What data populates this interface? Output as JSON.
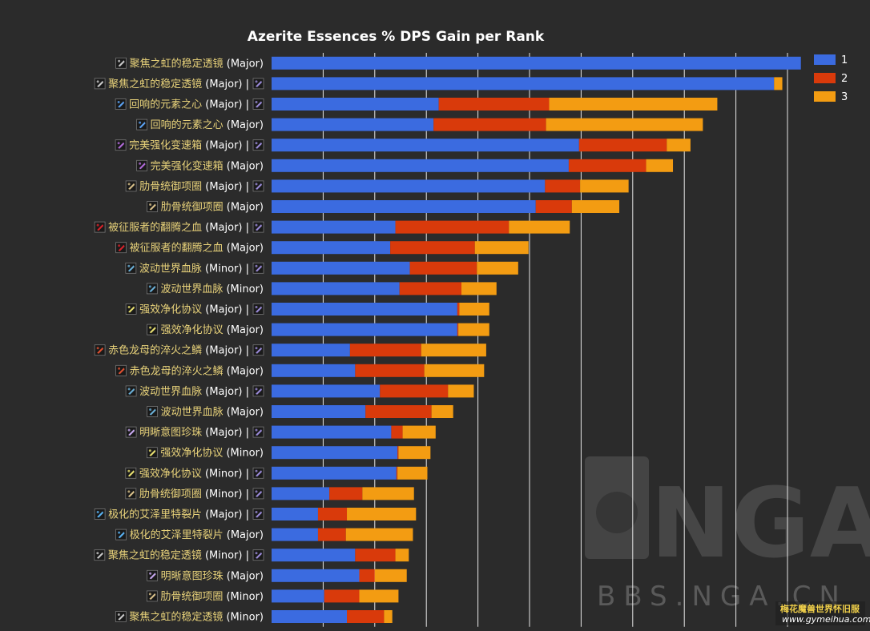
{
  "chart_data": {
    "type": "bar",
    "orientation": "horizontal",
    "stacked": true,
    "title": "Azerite Essences % DPS Gain per Rank",
    "xlim": [
      0,
      5.0
    ],
    "grid": true,
    "legend_position": "top-right",
    "series": [
      {
        "name": "1",
        "color": "#3b6be0"
      },
      {
        "name": "2",
        "color": "#d93a0b"
      },
      {
        "name": "3",
        "color": "#f39c12"
      }
    ],
    "rows": [
      {
        "name": "聚焦之虹的稳定透镜",
        "suffix": "(Major)",
        "icon": "lens-icon",
        "second_icon": false,
        "values": [
          5.13,
          0,
          0
        ]
      },
      {
        "name": "聚焦之虹的稳定透镜",
        "suffix": "(Major) |",
        "icon": "lens-icon",
        "second_icon": true,
        "values": [
          4.87,
          0,
          0.08
        ]
      },
      {
        "name": "回响的元素之心",
        "suffix": "(Major) |",
        "icon": "heart-icon",
        "second_icon": true,
        "values": [
          1.62,
          1.07,
          1.63
        ]
      },
      {
        "name": "回响的元素之心",
        "suffix": "(Major)",
        "icon": "heart-icon",
        "second_icon": false,
        "values": [
          1.57,
          1.09,
          1.52
        ]
      },
      {
        "name": "完美强化变速箱",
        "suffix": "(Major) |",
        "icon": "gearbox-icon",
        "second_icon": true,
        "values": [
          2.98,
          0.85,
          0.23
        ]
      },
      {
        "name": "完美强化变速箱",
        "suffix": "(Major)",
        "icon": "gearbox-icon",
        "second_icon": false,
        "values": [
          2.88,
          0.75,
          0.26
        ]
      },
      {
        "name": "肋骨统御项圈",
        "suffix": "(Major) |",
        "icon": "collar-icon",
        "second_icon": true,
        "values": [
          2.65,
          0.34,
          0.47
        ]
      },
      {
        "name": "肋骨统御项圈",
        "suffix": "(Major)",
        "icon": "collar-icon",
        "second_icon": false,
        "values": [
          2.56,
          0.35,
          0.46
        ]
      },
      {
        "name": "被征服者的翻腾之血",
        "suffix": "(Major) |",
        "icon": "blood-icon",
        "second_icon": true,
        "values": [
          1.2,
          1.1,
          0.59
        ]
      },
      {
        "name": "被征服者的翻腾之血",
        "suffix": "(Major)",
        "icon": "blood-icon",
        "second_icon": false,
        "values": [
          1.15,
          0.82,
          0.52
        ]
      },
      {
        "name": "波动世界血脉",
        "suffix": "(Minor) |",
        "icon": "vein-icon",
        "second_icon": true,
        "values": [
          1.34,
          0.65,
          0.4
        ]
      },
      {
        "name": "波动世界血脉",
        "suffix": "(Minor)",
        "icon": "vein-icon",
        "second_icon": false,
        "values": [
          1.24,
          0.6,
          0.34
        ]
      },
      {
        "name": "强效净化协议",
        "suffix": "(Major) |",
        "icon": "protocol-icon",
        "second_icon": true,
        "values": [
          1.8,
          0.02,
          0.29
        ]
      },
      {
        "name": "强效净化协议",
        "suffix": "(Major)",
        "icon": "protocol-icon",
        "second_icon": false,
        "values": [
          1.8,
          0.01,
          0.3
        ]
      },
      {
        "name": "赤色龙母的淬火之鳞",
        "suffix": "(Major) |",
        "icon": "scale-icon",
        "second_icon": true,
        "values": [
          0.76,
          0.69,
          0.63
        ]
      },
      {
        "name": "赤色龙母的淬火之鳞",
        "suffix": "(Major)",
        "icon": "scale-icon",
        "second_icon": false,
        "values": [
          0.81,
          0.67,
          0.58
        ]
      },
      {
        "name": "波动世界血脉",
        "suffix": "(Major) |",
        "icon": "vein-icon",
        "second_icon": true,
        "values": [
          1.05,
          0.66,
          0.25
        ]
      },
      {
        "name": "波动世界血脉",
        "suffix": "(Major)",
        "icon": "vein-icon",
        "second_icon": false,
        "values": [
          0.91,
          0.64,
          0.21
        ]
      },
      {
        "name": "明晰意图珍珠",
        "suffix": "(Major) |",
        "icon": "pearl-icon",
        "second_icon": true,
        "values": [
          1.16,
          0.11,
          0.32
        ]
      },
      {
        "name": "强效净化协议",
        "suffix": "(Minor)",
        "icon": "protocol-icon",
        "second_icon": false,
        "values": [
          1.22,
          0.01,
          0.31
        ]
      },
      {
        "name": "强效净化协议",
        "suffix": "(Minor) |",
        "icon": "protocol-icon",
        "second_icon": true,
        "values": [
          1.21,
          0.01,
          0.29
        ]
      },
      {
        "name": "肋骨统御项圈",
        "suffix": "(Minor) |",
        "icon": "collar-icon",
        "second_icon": true,
        "values": [
          0.56,
          0.32,
          0.5
        ]
      },
      {
        "name": "极化的艾泽里特裂片",
        "suffix": "(Major) |",
        "icon": "shard-icon",
        "second_icon": true,
        "values": [
          0.45,
          0.28,
          0.67
        ]
      },
      {
        "name": "极化的艾泽里特裂片",
        "suffix": "(Major)",
        "icon": "shard-icon",
        "second_icon": false,
        "values": [
          0.45,
          0.27,
          0.65
        ]
      },
      {
        "name": "聚焦之虹的稳定透镜",
        "suffix": "(Minor) |",
        "icon": "lens-icon",
        "second_icon": true,
        "values": [
          0.81,
          0.39,
          0.13
        ]
      },
      {
        "name": "明晰意图珍珠",
        "suffix": "(Major)",
        "icon": "pearl-icon",
        "second_icon": false,
        "values": [
          0.85,
          0.15,
          0.31
        ]
      },
      {
        "name": "肋骨统御项圈",
        "suffix": "(Minor)",
        "icon": "collar-icon",
        "second_icon": false,
        "values": [
          0.51,
          0.34,
          0.38
        ]
      },
      {
        "name": "聚焦之虹的稳定透镜",
        "suffix": "(Minor)",
        "icon": "lens-icon",
        "second_icon": false,
        "values": [
          0.73,
          0.36,
          0.08
        ]
      }
    ]
  },
  "watermark": {
    "logo_text": "NGA",
    "site": "BBS.NGA.CN",
    "corner_cn": "梅花魔兽世界怀旧服",
    "corner_url": "www.gymeihua.com"
  },
  "icon_colors": {
    "lens-icon": "#c9c9c9",
    "heart-icon": "#5aa0f0",
    "gearbox-icon": "#b06ad8",
    "collar-icon": "#d8c08a",
    "blood-icon": "#d8222a",
    "vein-icon": "#6ab0d8",
    "protocol-icon": "#e8e070",
    "scale-icon": "#e05030",
    "pearl-icon": "#c8a8f0",
    "shard-icon": "#58b0f0",
    "trait-icon": "#9a8ad8"
  }
}
